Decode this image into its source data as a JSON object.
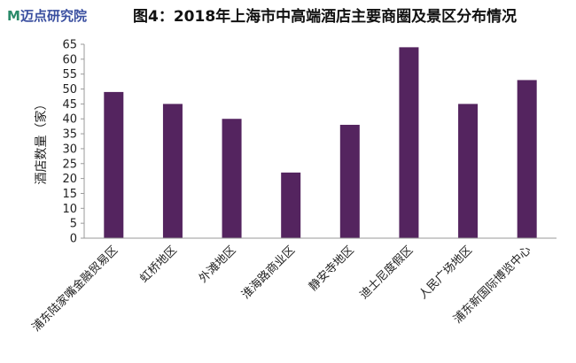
{
  "logo": {
    "text": "迈点研究院",
    "mark": "M",
    "brand_color": "#3a4fa0"
  },
  "chart_data": {
    "type": "bar",
    "title": "图4：2018年上海市中高端酒店主要商圈及景区分布情况",
    "ylabel": "酒店数量（家）",
    "xlabel": "",
    "ylim": [
      0,
      65
    ],
    "yticks": [
      0,
      5,
      10,
      15,
      20,
      25,
      30,
      35,
      40,
      45,
      50,
      55,
      60,
      65
    ],
    "categories": [
      "浦东陆家嘴金融贸易区",
      "虹桥地区",
      "外滩地区",
      "淮海路商业区",
      "静安寺地区",
      "迪士尼度假区",
      "人民广场地区",
      "浦东新国际博览中心"
    ],
    "values": [
      49,
      45,
      40,
      22,
      38,
      64,
      45,
      53
    ],
    "bar_color": "#54245f",
    "grid": false
  }
}
